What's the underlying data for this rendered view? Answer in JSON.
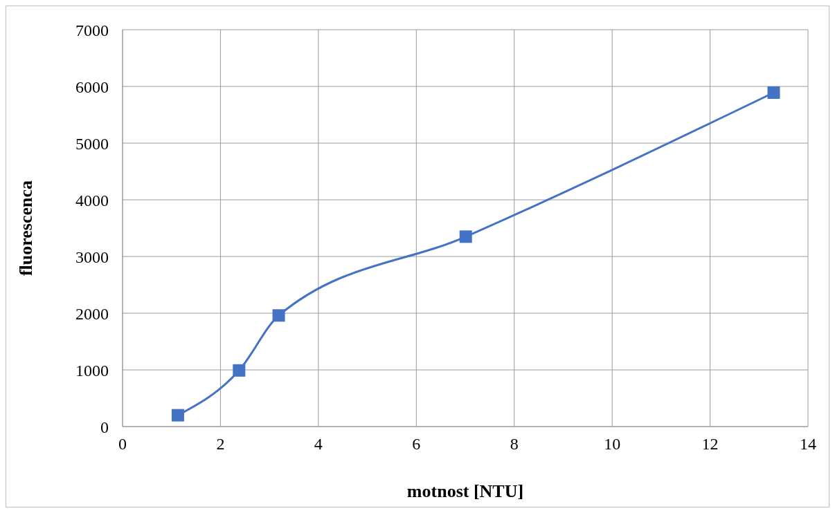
{
  "chart_data": {
    "type": "line",
    "xlabel": "motnost [NTU]",
    "ylabel": "fluorescenca",
    "x": [
      1.13,
      2.38,
      3.19,
      7.01,
      13.3
    ],
    "series": [
      {
        "color": "#4472c4",
        "values": [
          200,
          990,
          1960,
          3350,
          5890
        ]
      }
    ],
    "xlim": [
      0,
      14
    ],
    "xticks": [
      0,
      2,
      4,
      6,
      8,
      10,
      12,
      14
    ],
    "ylim": [
      0,
      7000
    ],
    "yticks": [
      0,
      1000,
      2000,
      3000,
      4000,
      5000,
      6000,
      7000
    ],
    "grid": true,
    "marker": "square",
    "line_style": "solid"
  }
}
